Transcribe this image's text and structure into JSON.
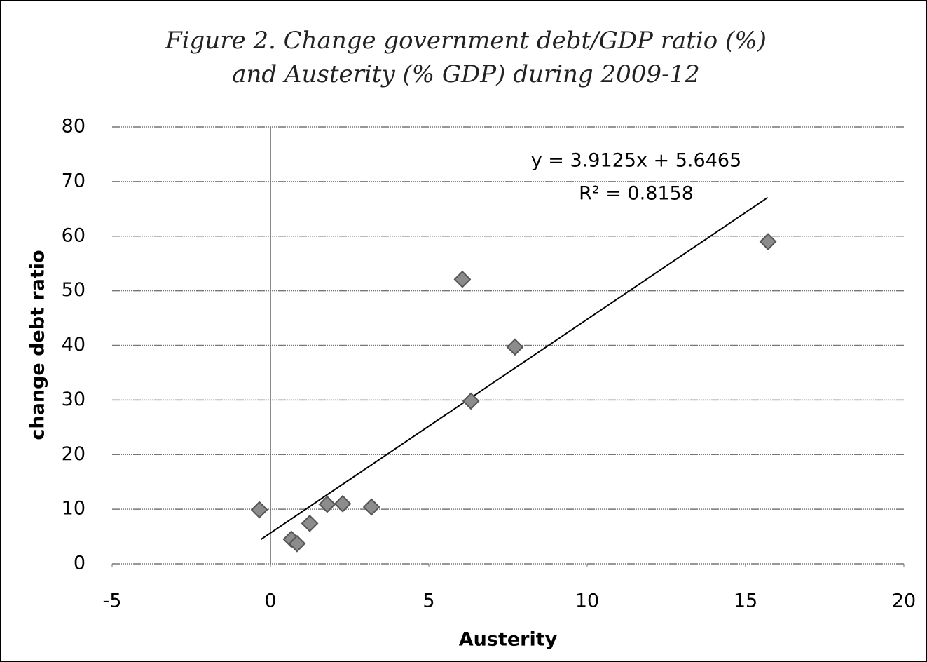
{
  "chart_data": {
    "type": "scatter",
    "title": [
      "Figure 2. Change government debt/GDP ratio (%)",
      "and Austerity (% GDP)  during 2009-12"
    ],
    "x_label": "Austerity",
    "y_label": "change debt ratio",
    "x": [
      -0.35,
      0.66,
      0.84,
      1.24,
      1.79,
      2.28,
      3.19,
      6.06,
      6.33,
      7.72,
      15.71
    ],
    "series": [
      {
        "color": "#8c8c8c",
        "values": [
          9.9,
          4.5,
          3.7,
          7.4,
          10.9,
          11.0,
          10.4,
          52.1,
          29.8,
          39.7,
          59.0
        ]
      }
    ],
    "xlim": [
      -5,
      20
    ],
    "xticks": [
      -5,
      0,
      5,
      10,
      15,
      20
    ],
    "ylim": [
      0,
      80
    ],
    "yticks": [
      0,
      10,
      20,
      30,
      40,
      50,
      60,
      70,
      80
    ],
    "grid": true,
    "trendline": {
      "slope": 3.9125,
      "intercept": 5.6465,
      "x_range": [
        -0.3,
        15.7
      ],
      "equation": "y = 3.9125x + 5.6465",
      "r_squared_label": "R² = 0.8158"
    }
  }
}
